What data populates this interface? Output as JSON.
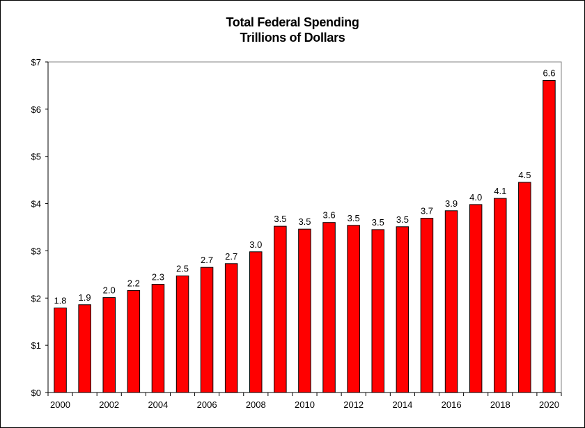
{
  "chart_data": {
    "type": "bar",
    "title": "Total Federal Spending",
    "subtitle": "Trillions of Dollars",
    "xlabel": "",
    "ylabel": "",
    "ylim": [
      0,
      7
    ],
    "y_ticks": [
      0,
      1,
      2,
      3,
      4,
      5,
      6,
      7
    ],
    "y_tick_labels": [
      "$0",
      "$1",
      "$2",
      "$3",
      "$4",
      "$5",
      "$6",
      "$7"
    ],
    "categories": [
      "2000",
      "2001",
      "2002",
      "2003",
      "2004",
      "2005",
      "2006",
      "2007",
      "2008",
      "2009",
      "2010",
      "2011",
      "2012",
      "2013",
      "2014",
      "2015",
      "2016",
      "2017",
      "2018",
      "2019",
      "2020"
    ],
    "x_tick_labels_shown": [
      "2000",
      "2002",
      "2004",
      "2006",
      "2008",
      "2010",
      "2012",
      "2014",
      "2016",
      "2018",
      "2020"
    ],
    "values": [
      1.79,
      1.86,
      2.01,
      2.16,
      2.29,
      2.47,
      2.65,
      2.73,
      2.98,
      3.52,
      3.46,
      3.6,
      3.54,
      3.45,
      3.51,
      3.69,
      3.85,
      3.98,
      4.11,
      4.45,
      6.61
    ],
    "data_labels": [
      "1.8",
      "1.9",
      "2.0",
      "2.2",
      "2.3",
      "2.5",
      "2.7",
      "2.7",
      "3.0",
      "3.5",
      "3.5",
      "3.6",
      "3.5",
      "3.5",
      "3.5",
      "3.7",
      "3.9",
      "4.0",
      "4.1",
      "4.5",
      "6.6"
    ],
    "bar_color": "#FF0000",
    "bar_edge_color": "#000000",
    "grid": false,
    "legend": "none"
  }
}
